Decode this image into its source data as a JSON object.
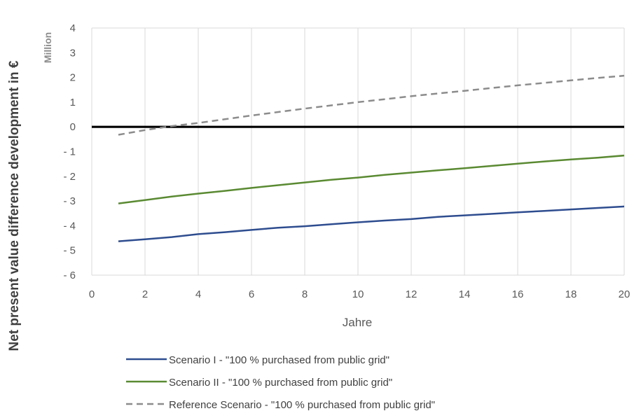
{
  "chart_data": {
    "type": "line",
    "ylabel": "Net present value difference development in €",
    "ylabel_unit": "Million",
    "xlabel": "Jahre",
    "xlim": [
      0,
      20
    ],
    "ylim": [
      -6,
      4
    ],
    "x_ticks": [
      0,
      2,
      4,
      6,
      8,
      10,
      12,
      14,
      16,
      18,
      20
    ],
    "y_ticks": [
      4,
      3,
      2,
      1,
      0,
      -1,
      -2,
      -3,
      -4,
      -5,
      -6
    ],
    "y_tick_labels": [
      "4",
      "3",
      "2",
      "1",
      "0",
      "- 1",
      "- 2",
      "- 3",
      "- 4",
      "- 5",
      "- 6"
    ],
    "grid": "vertical",
    "legend_position": "bottom",
    "zero_line_color": "#000000",
    "x": [
      1,
      2,
      3,
      4,
      5,
      6,
      7,
      8,
      9,
      10,
      11,
      12,
      13,
      14,
      15,
      16,
      17,
      18,
      19,
      20
    ],
    "series": [
      {
        "name": "Scenario I - \"100 % purchased from public grid\"",
        "color": "#2e4d8f",
        "style": "solid",
        "values": [
          -4.63,
          -4.55,
          -4.46,
          -4.34,
          -4.26,
          -4.17,
          -4.08,
          -4.02,
          -3.94,
          -3.86,
          -3.79,
          -3.73,
          -3.64,
          -3.58,
          -3.52,
          -3.46,
          -3.4,
          -3.34,
          -3.28,
          -3.22
        ]
      },
      {
        "name": "Scenario II - \"100 % purchased from public grid\"",
        "color": "#5a8a32",
        "style": "solid",
        "values": [
          -3.1,
          -2.96,
          -2.82,
          -2.7,
          -2.59,
          -2.47,
          -2.36,
          -2.25,
          -2.14,
          -2.05,
          -1.94,
          -1.85,
          -1.76,
          -1.67,
          -1.58,
          -1.49,
          -1.4,
          -1.32,
          -1.25,
          -1.16
        ]
      },
      {
        "name": "Reference Scenario -  \"100 % purchased from public grid\"",
        "color": "#8c8c8c",
        "style": "dashed",
        "values": [
          -0.32,
          -0.13,
          0.03,
          0.16,
          0.31,
          0.46,
          0.6,
          0.74,
          0.87,
          1.0,
          1.12,
          1.24,
          1.35,
          1.46,
          1.57,
          1.68,
          1.78,
          1.88,
          1.98,
          2.07
        ]
      }
    ]
  }
}
